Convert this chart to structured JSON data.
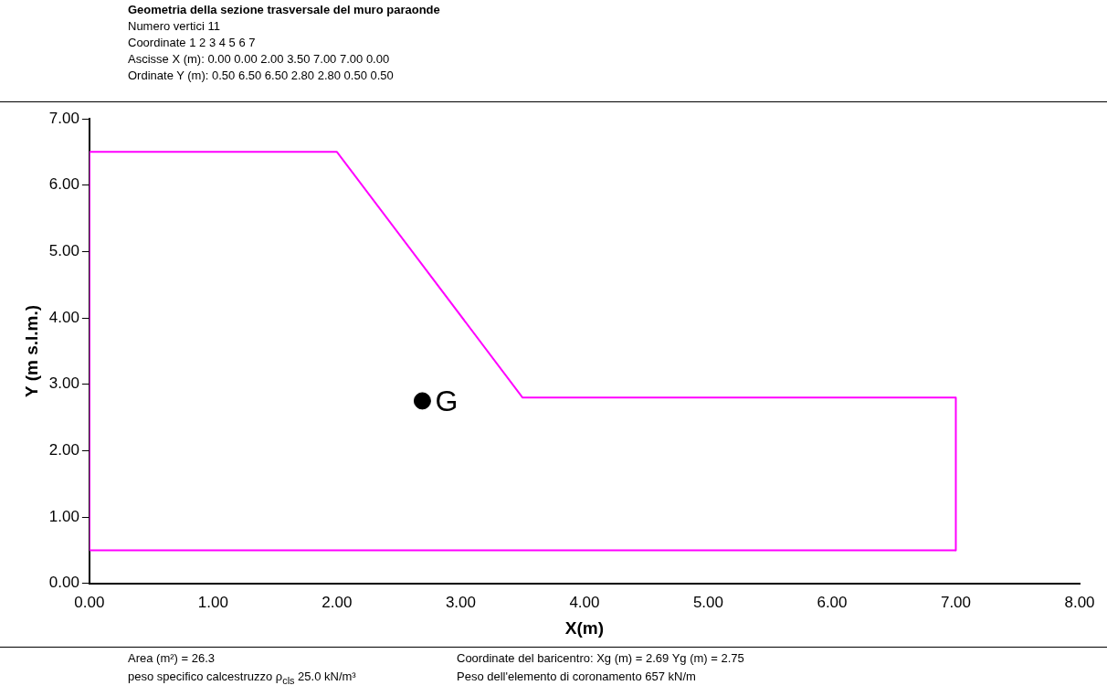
{
  "chart_data": {
    "type": "line",
    "title": "Geometria della sezione trasversale del muro paraonde",
    "xlabel": "X(m)",
    "ylabel": "Y (m s.l.m.)",
    "series": [
      {
        "type": "line",
        "color": "#ff00ff",
        "marker": "none",
        "x": [
          0.0,
          0.0,
          2.0,
          3.5,
          7.0,
          7.0
        ],
        "values": [
          0.5,
          6.5,
          6.5,
          2.8,
          2.8,
          0.5
        ]
      },
      {
        "type": "line",
        "color": "#ff00ff",
        "marker": "none",
        "x": [
          0.0,
          7.0
        ],
        "values": [
          0.5,
          0.5
        ]
      },
      {
        "type": "scatter",
        "name": "G",
        "color": "#000000",
        "marker": "circle",
        "x": [
          2.69
        ],
        "values": [
          2.75
        ]
      }
    ],
    "xlim": [
      0,
      8
    ],
    "ylim": [
      0,
      7
    ],
    "xticks": [
      {
        "value": 0,
        "label": "0.00"
      },
      {
        "value": 1,
        "label": "1.00"
      },
      {
        "value": 2,
        "label": "2.00"
      },
      {
        "value": 3,
        "label": "3.00"
      },
      {
        "value": 4,
        "label": "4.00"
      },
      {
        "value": 5,
        "label": "5.00"
      },
      {
        "value": 6,
        "label": "6.00"
      },
      {
        "value": 7,
        "label": "7.00"
      },
      {
        "value": 8,
        "label": "8.00"
      }
    ],
    "yticks": [
      {
        "value": 0,
        "label": "0.00"
      },
      {
        "value": 1,
        "label": "1.00"
      },
      {
        "value": 2,
        "label": "2.00"
      },
      {
        "value": 3,
        "label": "3.00"
      },
      {
        "value": 4,
        "label": "4.00"
      },
      {
        "value": 5,
        "label": "5.00"
      },
      {
        "value": 6,
        "label": "6.00"
      },
      {
        "value": 7,
        "label": "7.00"
      }
    ],
    "grid": false,
    "legend": false,
    "annotations": [
      "Numero vertici 11",
      "Coordinate 1 2 3 4 5 6 7",
      "Ascisse X (m): 0.00 0.00 2.00 3.50 7.00 7.00 0.00",
      "Ordinate Y (m): 0.50 6.50 6.50 2.80 2.80 0.50 0.50",
      "Area (m²) = 26.3",
      "Coordinate del baricentro: Xg (m) = 2.69 Yg (m) = 2.75",
      "peso specifico calcestruzzo ρ$_{cls}$ 25.0 kN/m³",
      "Peso dell'elemento di coronamento 657 kN/m"
    ]
  }
}
